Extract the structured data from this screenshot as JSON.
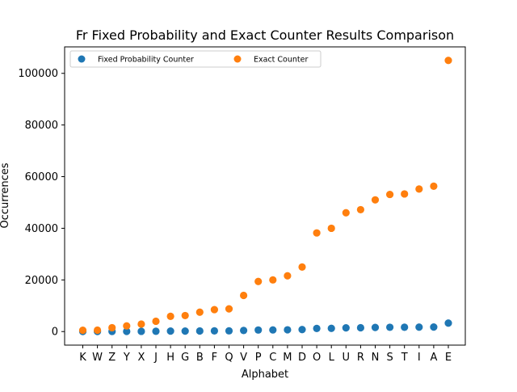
{
  "chart_data": {
    "type": "scatter",
    "title": "Fr Fixed Probability and Exact Counter Results Comparison",
    "xlabel": "Alphabet",
    "ylabel": "Occurrences",
    "categories": [
      "K",
      "W",
      "Z",
      "Y",
      "X",
      "J",
      "H",
      "G",
      "B",
      "F",
      "Q",
      "V",
      "P",
      "C",
      "M",
      "D",
      "O",
      "L",
      "U",
      "R",
      "N",
      "S",
      "T",
      "I",
      "A",
      "E"
    ],
    "ylim": [
      -5250,
      110250
    ],
    "yticks": [
      0,
      20000,
      40000,
      60000,
      80000,
      100000
    ],
    "ytick_labels": [
      "0",
      "20000",
      "40000",
      "60000",
      "80000",
      "100000"
    ],
    "grid": false,
    "legend_placement": "top-left",
    "series": [
      {
        "name": "Fixed Probability Counter",
        "color": "#1f77b4",
        "values": [
          20,
          20,
          50,
          80,
          90,
          120,
          180,
          200,
          220,
          260,
          280,
          430,
          600,
          630,
          680,
          770,
          1200,
          1250,
          1430,
          1480,
          1590,
          1660,
          1670,
          1720,
          1760,
          3280
        ]
      },
      {
        "name": "Exact Counter",
        "color": "#ff7f0e",
        "values": [
          500,
          550,
          1500,
          2200,
          2900,
          4000,
          5900,
          6200,
          7500,
          8500,
          8800,
          14000,
          19400,
          20000,
          21600,
          25000,
          38200,
          40000,
          46000,
          47200,
          51000,
          53100,
          53300,
          55200,
          56300,
          105000
        ]
      }
    ]
  }
}
